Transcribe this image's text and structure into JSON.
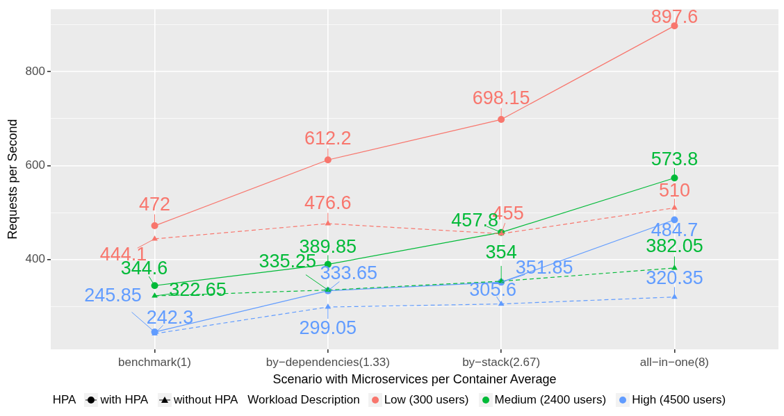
{
  "chart_data": {
    "type": "line",
    "xlabel": "Scenario with Microservices per Container Average",
    "ylabel": "Requests per Second",
    "categories": [
      "benchmark(1)",
      "by−dependencies(1.33)",
      "by−stack(2.67)",
      "all−in−one(8)"
    ],
    "ylim": [
      209,
      933
    ],
    "yticks": [
      {
        "value": 300,
        "label": null
      },
      400,
      {
        "value": 500,
        "label": null
      },
      600,
      {
        "value": 700,
        "label": null
      },
      800,
      {
        "value": 900,
        "label": null
      }
    ],
    "grid": true,
    "legend": "bottom",
    "data_labels": true,
    "legend_title": [
      "HPA",
      "Workload Description"
    ],
    "annotations": [
      "with HPA",
      "without HPA"
    ],
    "series": [
      {
        "name": "Low (300 users)",
        "color": "#f8766d",
        "marker": "circle",
        "line_style": "solid",
        "values": [
          472,
          612.2,
          698.15,
          897.6
        ]
      },
      {
        "color": "#f8766d",
        "marker": "triangle",
        "line_style": "dashed",
        "values": [
          444.1,
          476.6,
          455,
          510
        ]
      },
      {
        "name": "Medium (2400 users)",
        "color": "#00ba38",
        "marker": "circle",
        "line_style": "solid",
        "values": [
          344.6,
          389.85,
          457.8,
          573.8
        ]
      },
      {
        "color": "#00ba38",
        "marker": "triangle",
        "line_style": "dashed",
        "values": [
          322.65,
          335.25,
          354,
          382.05
        ]
      },
      {
        "name": "High (4500 users)",
        "color": "#619cff",
        "marker": "circle",
        "line_style": "solid",
        "values": [
          245.85,
          333.65,
          351.85,
          484.7
        ]
      },
      {
        "color": "#619cff",
        "marker": "triangle",
        "line_style": "dashed",
        "values": [
          242.3,
          299.05,
          305.6,
          320.35
        ]
      }
    ]
  }
}
